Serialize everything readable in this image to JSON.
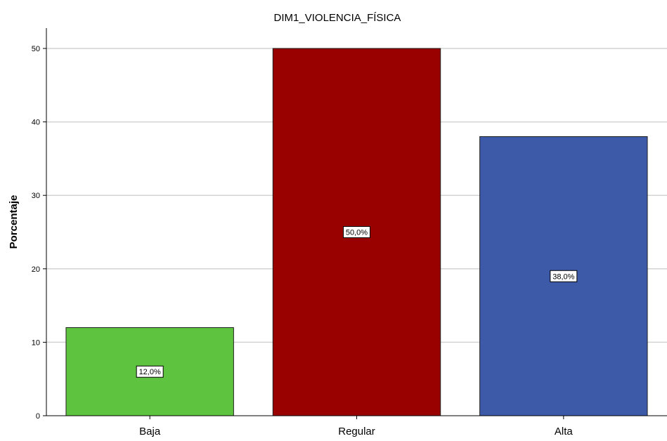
{
  "chart_data": {
    "type": "bar",
    "title": "DIM1_VIOLENCIA_FÍSICA",
    "xlabel": "",
    "ylabel": "Porcentaje",
    "categories": [
      "Baja",
      "Regular",
      "Alta"
    ],
    "values": [
      12,
      50,
      38
    ],
    "data_labels": [
      "12,0%",
      "50,0%",
      "38,0%"
    ],
    "colors": [
      "#5ec33e",
      "#990000",
      "#3d5aa8"
    ],
    "ylim": [
      0,
      50
    ],
    "yticks": [
      0,
      10,
      20,
      30,
      40,
      50
    ],
    "grid": true,
    "gridline_color": "#d3d3d3"
  }
}
